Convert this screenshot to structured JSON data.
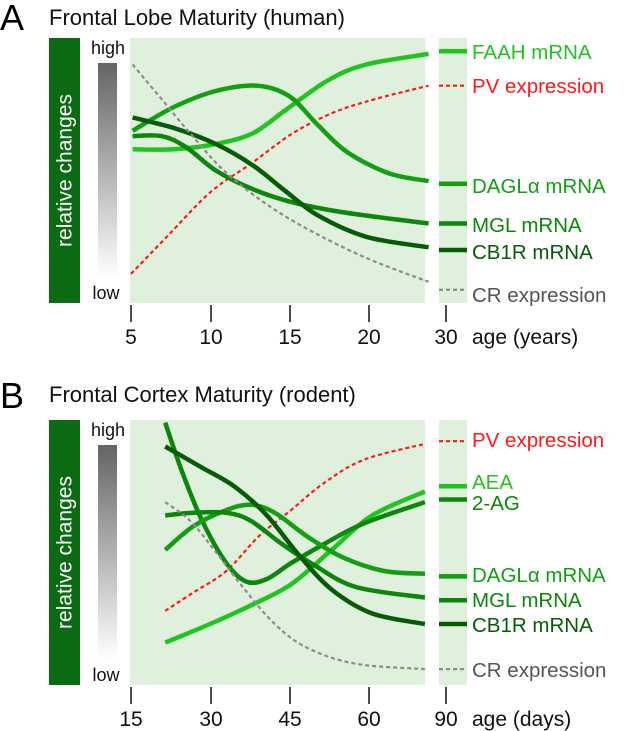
{
  "colors": {
    "plot_background": "#dff1dc",
    "ylabel_bar": "#0b6b12",
    "gradient_top": "#646464",
    "gradient_bottom": "#ffffff"
  },
  "chart_data": [
    {
      "type": "line",
      "panel_label": "A",
      "title": "Frontal Lobe Maturity (human)",
      "ylabel": "relative changes",
      "y_high_label": "high",
      "y_low_label": "low",
      "ylim": [
        0,
        1
      ],
      "xlabel": "age (years)",
      "x_ticks": [
        "5",
        "10",
        "15",
        "20",
        "30"
      ],
      "x_axis_break": true,
      "grid": false,
      "series": [
        {
          "name": "FAAH mRNA",
          "color": "#1fc41f",
          "style": "solid",
          "points": [
            [
              5.1,
              0.58
            ],
            [
              7.7,
              0.58
            ],
            [
              10.3,
              0.6
            ],
            [
              12.6,
              0.64
            ],
            [
              14.7,
              0.73
            ],
            [
              17.3,
              0.84
            ],
            [
              19.7,
              0.9
            ],
            [
              23.6,
              0.94
            ]
          ],
          "end_level": 0.95
        },
        {
          "name": "PV expression",
          "color": "#ff1a1a",
          "style": "dashed",
          "points": [
            [
              5,
              0.11
            ],
            [
              7.4,
              0.26
            ],
            [
              10,
              0.42
            ],
            [
              12.6,
              0.53
            ],
            [
              15.1,
              0.64
            ],
            [
              17.7,
              0.72
            ],
            [
              20.3,
              0.77
            ],
            [
              23.6,
              0.82
            ]
          ],
          "end_level": 0.82
        },
        {
          "name": "DAGLα mRNA",
          "color": "#12a012",
          "style": "solid",
          "points": [
            [
              5.1,
              0.65
            ],
            [
              7.7,
              0.74
            ],
            [
              10.3,
              0.8
            ],
            [
              12.9,
              0.82
            ],
            [
              14.9,
              0.78
            ],
            [
              16.7,
              0.67
            ],
            [
              18.5,
              0.57
            ],
            [
              21.1,
              0.49
            ],
            [
              23.6,
              0.46
            ]
          ],
          "end_level": 0.45
        },
        {
          "name": "MGL mRNA",
          "color": "#0b870b",
          "style": "solid",
          "points": [
            [
              5.1,
              0.63
            ],
            [
              6.9,
              0.63
            ],
            [
              8.4,
              0.59
            ],
            [
              10.3,
              0.5
            ],
            [
              12.6,
              0.43
            ],
            [
              15.1,
              0.38
            ],
            [
              18.5,
              0.34
            ],
            [
              23.6,
              0.3
            ]
          ],
          "end_level": 0.3
        },
        {
          "name": "CB1R mRNA",
          "color": "#055c05",
          "style": "solid",
          "points": [
            [
              5.1,
              0.7
            ],
            [
              7.7,
              0.66
            ],
            [
              10.3,
              0.6
            ],
            [
              12.6,
              0.52
            ],
            [
              14.7,
              0.42
            ],
            [
              16.7,
              0.33
            ],
            [
              19.7,
              0.25
            ],
            [
              23.6,
              0.21
            ]
          ],
          "end_level": 0.2
        },
        {
          "name": "CR expression",
          "color": "#8c8c8c",
          "label_color": "#555555",
          "style": "dashed",
          "points": [
            [
              5.1,
              0.9
            ],
            [
              6.9,
              0.77
            ],
            [
              8.7,
              0.64
            ],
            [
              10.8,
              0.5
            ],
            [
              13.3,
              0.38
            ],
            [
              16,
              0.28
            ],
            [
              19.7,
              0.17
            ],
            [
              23.6,
              0.08
            ]
          ],
          "end_level": 0.05
        }
      ]
    },
    {
      "type": "line",
      "panel_label": "B",
      "title": "Frontal Cortex Maturity (rodent)",
      "ylabel": "relative changes",
      "y_high_label": "high",
      "y_low_label": "low",
      "ylim": [
        0,
        1
      ],
      "xlabel": "age (days)",
      "x_ticks": [
        "15",
        "30",
        "45",
        "60",
        "90"
      ],
      "x_axis_break": true,
      "grid": false,
      "series": [
        {
          "name": "PV expression",
          "color": "#ff1a1a",
          "style": "dashed",
          "points": [
            [
              21.5,
              0.28
            ],
            [
              26.9,
              0.35
            ],
            [
              33.1,
              0.43
            ],
            [
              39.2,
              0.56
            ],
            [
              45.4,
              0.66
            ],
            [
              51.5,
              0.76
            ],
            [
              59.2,
              0.85
            ],
            [
              70.8,
              0.91
            ]
          ],
          "end_level": 0.92
        },
        {
          "name": "AEA",
          "color": "#1fc41f",
          "style": "solid",
          "points": [
            [
              21.5,
              0.16
            ],
            [
              30,
              0.23
            ],
            [
              37.7,
              0.3
            ],
            [
              45.4,
              0.38
            ],
            [
              53.1,
              0.51
            ],
            [
              60.8,
              0.64
            ],
            [
              70.8,
              0.73
            ]
          ],
          "end_level": 0.75
        },
        {
          "name": "2-AG",
          "color": "#0b870b",
          "style": "solid",
          "points": [
            [
              21.5,
              0.99
            ],
            [
              24.6,
              0.81
            ],
            [
              28.5,
              0.62
            ],
            [
              33.1,
              0.46
            ],
            [
              36.9,
              0.39
            ],
            [
              40.8,
              0.4
            ],
            [
              45.4,
              0.46
            ],
            [
              51.5,
              0.53
            ],
            [
              59.2,
              0.61
            ],
            [
              70.8,
              0.69
            ]
          ],
          "end_level": 0.7
        },
        {
          "name": "DAGLα mRNA",
          "color": "#12a012",
          "style": "solid",
          "points": [
            [
              21.5,
              0.51
            ],
            [
              26.9,
              0.6
            ],
            [
              33.1,
              0.66
            ],
            [
              37.7,
              0.68
            ],
            [
              42.3,
              0.65
            ],
            [
              48.5,
              0.56
            ],
            [
              55.4,
              0.48
            ],
            [
              63.1,
              0.43
            ],
            [
              70.8,
              0.42
            ]
          ],
          "end_level": 0.41
        },
        {
          "name": "MGL mRNA",
          "color": "#0b870b",
          "style": "solid",
          "points": [
            [
              21.5,
              0.64
            ],
            [
              26.9,
              0.65
            ],
            [
              33.1,
              0.65
            ],
            [
              37.7,
              0.62
            ],
            [
              43.8,
              0.53
            ],
            [
              50,
              0.45
            ],
            [
              57.7,
              0.37
            ],
            [
              70.8,
              0.33
            ]
          ],
          "end_level": 0.32
        },
        {
          "name": "CB1R mRNA",
          "color": "#055c05",
          "style": "solid",
          "points": [
            [
              21.5,
              0.9
            ],
            [
              28.5,
              0.82
            ],
            [
              34.6,
              0.75
            ],
            [
              40.8,
              0.64
            ],
            [
              46.9,
              0.49
            ],
            [
              53.1,
              0.36
            ],
            [
              60.8,
              0.27
            ],
            [
              70.8,
              0.23
            ]
          ],
          "end_level": 0.23
        },
        {
          "name": "CR expression",
          "color": "#8c8c8c",
          "label_color": "#555555",
          "style": "dashed",
          "points": [
            [
              21.5,
              0.69
            ],
            [
              26.2,
              0.62
            ],
            [
              30.8,
              0.51
            ],
            [
              36.2,
              0.37
            ],
            [
              42.3,
              0.23
            ],
            [
              48.5,
              0.14
            ],
            [
              57.7,
              0.08
            ],
            [
              70.8,
              0.06
            ]
          ],
          "end_level": 0.06
        }
      ]
    }
  ]
}
